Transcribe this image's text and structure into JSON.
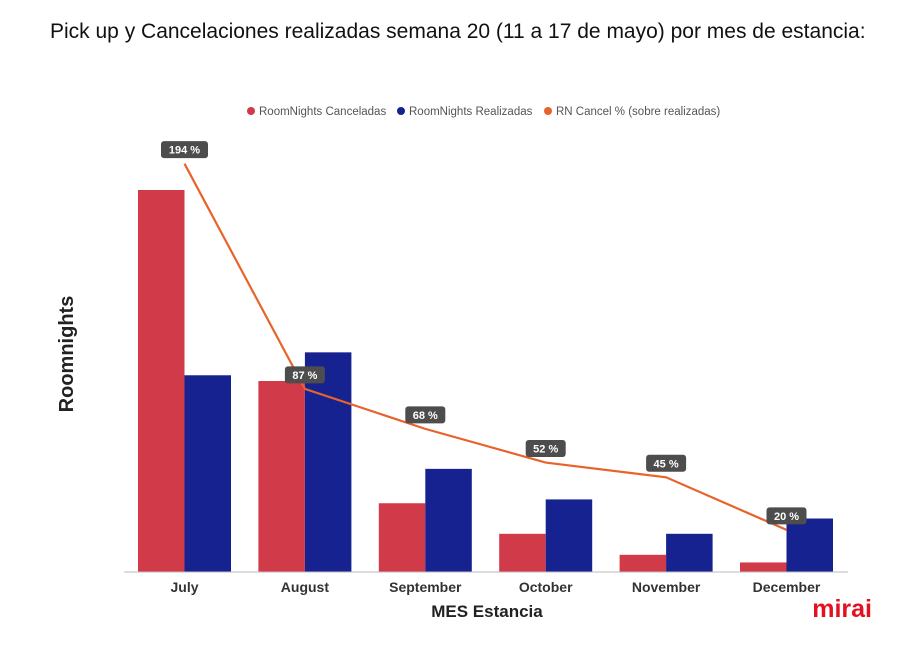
{
  "title": "Pick up y Cancelaciones realizadas semana 20 (11 a 17 de mayo) por mes de estancia:",
  "logo": {
    "text": "mirai",
    "color": "#e3101f"
  },
  "colors": {
    "canceladas": "#d13a48",
    "realizadas": "#15228f",
    "line": "#e8632b",
    "label_bg": "#4d4d4d"
  },
  "chart_data": {
    "type": "bar",
    "title": "Pick up y Cancelaciones realizadas semana 20 (11 a 17 de mayo) por mes de estancia:",
    "xlabel": "MES Estancia",
    "ylabel": "Roomnights",
    "legend_position": "top",
    "grid": false,
    "ylim": [
      0,
      100
    ],
    "categories": [
      "July",
      "August",
      "September",
      "October",
      "November",
      "December"
    ],
    "series": [
      {
        "name": "RoomNights Canceladas",
        "type": "bar",
        "values": [
          100,
          50,
          18,
          10,
          4.5,
          2.5
        ]
      },
      {
        "name": "RoomNights Realizadas",
        "type": "bar",
        "values": [
          51.5,
          57.5,
          27,
          19,
          10,
          14
        ]
      },
      {
        "name": "RN Cancel % (sobre realizadas)",
        "type": "line",
        "values": [
          194,
          87,
          68,
          52,
          45,
          20
        ],
        "labels": [
          "194 %",
          "87 %",
          "68 %",
          "52 %",
          "45 %",
          "20 %"
        ]
      }
    ]
  }
}
